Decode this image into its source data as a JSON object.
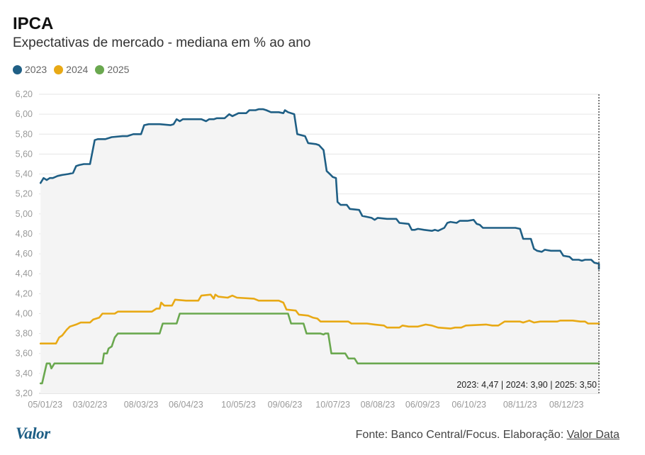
{
  "header": {
    "title": "IPCA",
    "subtitle": "Expectativas de mercado - mediana em % ao ano"
  },
  "legend": [
    {
      "label": "2023",
      "color": "#1f5f85"
    },
    {
      "label": "2024",
      "color": "#e8a915"
    },
    {
      "label": "2025",
      "color": "#6aa84f"
    }
  ],
  "summary": "2023: 4,47 | 2024: 3,90 | 2025: 3,50",
  "footer": {
    "logo": "Valor",
    "source_prefix": "Fonte: Banco Central/Focus. Elaboração: ",
    "source_link": "Valor Data"
  },
  "chart_data": {
    "type": "line",
    "xlim": [
      "2023-01-01",
      "2023-12-29"
    ],
    "ylim": [
      3.2,
      6.2
    ],
    "y_ticks": [
      3.2,
      3.4,
      3.6,
      3.8,
      4.0,
      4.2,
      4.4,
      4.6,
      4.8,
      5.0,
      5.2,
      5.4,
      5.6,
      5.8,
      6.0,
      6.2
    ],
    "y_tick_labels": [
      "3,20",
      "3,40",
      "3,60",
      "3,80",
      "4,00",
      "4,20",
      "4,40",
      "4,60",
      "4,80",
      "5,00",
      "5,20",
      "5,40",
      "5,60",
      "5,80",
      "6,00",
      "6,20"
    ],
    "x_tick_dates": [
      "2023-01-05",
      "2023-02-03",
      "2023-03-08",
      "2023-04-06",
      "2023-05-10",
      "2023-06-09",
      "2023-07-10",
      "2023-08-08",
      "2023-09-06",
      "2023-10-06",
      "2023-11-08",
      "2023-12-08"
    ],
    "x_tick_labels": [
      "05/01/23",
      "03/02/23",
      "08/03/23",
      "06/04/23",
      "10/05/23",
      "09/06/23",
      "10/07/23",
      "08/08/23",
      "06/09/23",
      "06/10/23",
      "08/11/23",
      "08/12/23"
    ],
    "area_under_series": "2023",
    "grid": true,
    "legend_position": "top-left",
    "series": [
      {
        "name": "2023",
        "color": "#1f5f85",
        "points": [
          [
            "2023-01-02",
            5.31
          ],
          [
            "2023-01-04",
            5.36
          ],
          [
            "2023-01-06",
            5.34
          ],
          [
            "2023-01-08",
            5.36
          ],
          [
            "2023-01-10",
            5.36
          ],
          [
            "2023-01-13",
            5.38
          ],
          [
            "2023-01-16",
            5.39
          ],
          [
            "2023-01-20",
            5.4
          ],
          [
            "2023-01-23",
            5.41
          ],
          [
            "2023-01-25",
            5.48
          ],
          [
            "2023-01-27",
            5.49
          ],
          [
            "2023-01-30",
            5.5
          ],
          [
            "2023-02-03",
            5.5
          ],
          [
            "2023-02-06",
            5.74
          ],
          [
            "2023-02-08",
            5.75
          ],
          [
            "2023-02-13",
            5.75
          ],
          [
            "2023-02-17",
            5.77
          ],
          [
            "2023-02-24",
            5.78
          ],
          [
            "2023-02-27",
            5.78
          ],
          [
            "2023-03-03",
            5.8
          ],
          [
            "2023-03-08",
            5.8
          ],
          [
            "2023-03-10",
            5.89
          ],
          [
            "2023-03-13",
            5.9
          ],
          [
            "2023-03-20",
            5.9
          ],
          [
            "2023-03-27",
            5.89
          ],
          [
            "2023-03-29",
            5.9
          ],
          [
            "2023-03-31",
            5.95
          ],
          [
            "2023-04-02",
            5.93
          ],
          [
            "2023-04-04",
            5.95
          ],
          [
            "2023-04-10",
            5.95
          ],
          [
            "2023-04-16",
            5.95
          ],
          [
            "2023-04-19",
            5.93
          ],
          [
            "2023-04-21",
            5.95
          ],
          [
            "2023-04-24",
            5.95
          ],
          [
            "2023-04-26",
            5.96
          ],
          [
            "2023-05-01",
            5.96
          ],
          [
            "2023-05-04",
            6.0
          ],
          [
            "2023-05-06",
            5.98
          ],
          [
            "2023-05-10",
            6.01
          ],
          [
            "2023-05-15",
            6.01
          ],
          [
            "2023-05-17",
            6.04
          ],
          [
            "2023-05-21",
            6.04
          ],
          [
            "2023-05-23",
            6.05
          ],
          [
            "2023-05-26",
            6.05
          ],
          [
            "2023-05-28",
            6.04
          ],
          [
            "2023-05-31",
            6.02
          ],
          [
            "2023-06-05",
            6.02
          ],
          [
            "2023-06-08",
            6.01
          ],
          [
            "2023-06-09",
            6.04
          ],
          [
            "2023-06-11",
            6.02
          ],
          [
            "2023-06-15",
            6.0
          ],
          [
            "2023-06-17",
            5.8
          ],
          [
            "2023-06-22",
            5.78
          ],
          [
            "2023-06-24",
            5.71
          ],
          [
            "2023-06-29",
            5.7
          ],
          [
            "2023-07-01",
            5.69
          ],
          [
            "2023-07-04",
            5.64
          ],
          [
            "2023-07-06",
            5.43
          ],
          [
            "2023-07-08",
            5.4
          ],
          [
            "2023-07-10",
            5.37
          ],
          [
            "2023-07-12",
            5.36
          ],
          [
            "2023-07-13",
            5.12
          ],
          [
            "2023-07-15",
            5.09
          ],
          [
            "2023-07-19",
            5.09
          ],
          [
            "2023-07-21",
            5.05
          ],
          [
            "2023-07-27",
            5.04
          ],
          [
            "2023-07-29",
            4.98
          ],
          [
            "2023-08-01",
            4.97
          ],
          [
            "2023-08-04",
            4.96
          ],
          [
            "2023-08-06",
            4.94
          ],
          [
            "2023-08-08",
            4.96
          ],
          [
            "2023-08-14",
            4.95
          ],
          [
            "2023-08-20",
            4.95
          ],
          [
            "2023-08-22",
            4.91
          ],
          [
            "2023-08-28",
            4.9
          ],
          [
            "2023-08-30",
            4.84
          ],
          [
            "2023-09-01",
            4.84
          ],
          [
            "2023-09-03",
            4.85
          ],
          [
            "2023-09-07",
            4.84
          ],
          [
            "2023-09-12",
            4.83
          ],
          [
            "2023-09-14",
            4.84
          ],
          [
            "2023-09-16",
            4.83
          ],
          [
            "2023-09-20",
            4.86
          ],
          [
            "2023-09-22",
            4.91
          ],
          [
            "2023-09-24",
            4.92
          ],
          [
            "2023-09-28",
            4.91
          ],
          [
            "2023-09-30",
            4.93
          ],
          [
            "2023-10-05",
            4.93
          ],
          [
            "2023-10-09",
            4.94
          ],
          [
            "2023-10-11",
            4.9
          ],
          [
            "2023-10-13",
            4.89
          ],
          [
            "2023-10-15",
            4.86
          ],
          [
            "2023-10-20",
            4.86
          ],
          [
            "2023-10-30",
            4.86
          ],
          [
            "2023-11-05",
            4.86
          ],
          [
            "2023-11-08",
            4.85
          ],
          [
            "2023-11-10",
            4.75
          ],
          [
            "2023-11-15",
            4.75
          ],
          [
            "2023-11-17",
            4.65
          ],
          [
            "2023-11-19",
            4.63
          ],
          [
            "2023-11-22",
            4.62
          ],
          [
            "2023-11-24",
            4.64
          ],
          [
            "2023-11-28",
            4.63
          ],
          [
            "2023-12-02",
            4.63
          ],
          [
            "2023-12-04",
            4.63
          ],
          [
            "2023-12-06",
            4.58
          ],
          [
            "2023-12-10",
            4.57
          ],
          [
            "2023-12-12",
            4.54
          ],
          [
            "2023-12-16",
            4.54
          ],
          [
            "2023-12-18",
            4.53
          ],
          [
            "2023-12-20",
            4.54
          ],
          [
            "2023-12-24",
            4.54
          ],
          [
            "2023-12-26",
            4.51
          ],
          [
            "2023-12-30",
            4.5
          ],
          [
            "2024-01-03",
            4.49
          ],
          [
            "2024-01-05",
            4.46
          ],
          [
            "2024-01-07",
            4.45
          ],
          [
            "2024-01-09",
            4.46
          ],
          [
            "2024-01-11",
            4.46
          ],
          [
            "2024-01-13",
            4.47
          ],
          [
            "2024-01-14",
            4.47
          ]
        ]
      },
      {
        "name": "2024",
        "color": "#e8a915",
        "points": [
          [
            "2023-01-02",
            3.7
          ],
          [
            "2023-01-12",
            3.7
          ],
          [
            "2023-01-14",
            3.76
          ],
          [
            "2023-01-16",
            3.78
          ],
          [
            "2023-01-19",
            3.84
          ],
          [
            "2023-01-21",
            3.87
          ],
          [
            "2023-01-25",
            3.89
          ],
          [
            "2023-01-28",
            3.91
          ],
          [
            "2023-02-03",
            3.91
          ],
          [
            "2023-02-05",
            3.94
          ],
          [
            "2023-02-09",
            3.96
          ],
          [
            "2023-02-11",
            4.0
          ],
          [
            "2023-02-19",
            4.0
          ],
          [
            "2023-02-21",
            4.02
          ],
          [
            "2023-03-08",
            4.02
          ],
          [
            "2023-03-15",
            4.02
          ],
          [
            "2023-03-18",
            4.05
          ],
          [
            "2023-03-20",
            4.05
          ],
          [
            "2023-03-21",
            4.11
          ],
          [
            "2023-03-23",
            4.08
          ],
          [
            "2023-03-28",
            4.08
          ],
          [
            "2023-03-30",
            4.14
          ],
          [
            "2023-04-06",
            4.13
          ],
          [
            "2023-04-14",
            4.13
          ],
          [
            "2023-04-16",
            4.18
          ],
          [
            "2023-04-22",
            4.19
          ],
          [
            "2023-04-24",
            4.15
          ],
          [
            "2023-04-25",
            4.19
          ],
          [
            "2023-04-27",
            4.17
          ],
          [
            "2023-05-03",
            4.16
          ],
          [
            "2023-05-06",
            4.18
          ],
          [
            "2023-05-09",
            4.16
          ],
          [
            "2023-05-20",
            4.15
          ],
          [
            "2023-05-23",
            4.13
          ],
          [
            "2023-06-05",
            4.13
          ],
          [
            "2023-06-08",
            4.11
          ],
          [
            "2023-06-10",
            4.04
          ],
          [
            "2023-06-16",
            4.03
          ],
          [
            "2023-06-18",
            3.99
          ],
          [
            "2023-06-24",
            3.98
          ],
          [
            "2023-06-27",
            3.96
          ],
          [
            "2023-06-30",
            3.95
          ],
          [
            "2023-07-02",
            3.92
          ],
          [
            "2023-07-20",
            3.92
          ],
          [
            "2023-07-22",
            3.9
          ],
          [
            "2023-08-01",
            3.9
          ],
          [
            "2023-08-06",
            3.89
          ],
          [
            "2023-08-12",
            3.88
          ],
          [
            "2023-08-14",
            3.86
          ],
          [
            "2023-08-22",
            3.86
          ],
          [
            "2023-08-24",
            3.88
          ],
          [
            "2023-08-28",
            3.87
          ],
          [
            "2023-09-03",
            3.87
          ],
          [
            "2023-09-08",
            3.89
          ],
          [
            "2023-09-12",
            3.88
          ],
          [
            "2023-09-16",
            3.86
          ],
          [
            "2023-09-24",
            3.85
          ],
          [
            "2023-09-27",
            3.86
          ],
          [
            "2023-10-01",
            3.86
          ],
          [
            "2023-10-04",
            3.88
          ],
          [
            "2023-10-17",
            3.89
          ],
          [
            "2023-10-21",
            3.88
          ],
          [
            "2023-10-25",
            3.88
          ],
          [
            "2023-10-29",
            3.92
          ],
          [
            "2023-11-08",
            3.92
          ],
          [
            "2023-11-10",
            3.91
          ],
          [
            "2023-11-14",
            3.93
          ],
          [
            "2023-11-17",
            3.91
          ],
          [
            "2023-11-21",
            3.92
          ],
          [
            "2023-12-02",
            3.92
          ],
          [
            "2023-12-04",
            3.93
          ],
          [
            "2023-12-12",
            3.93
          ],
          [
            "2023-12-17",
            3.92
          ],
          [
            "2023-12-20",
            3.92
          ],
          [
            "2023-12-22",
            3.9
          ],
          [
            "2024-01-14",
            3.9
          ]
        ]
      },
      {
        "name": "2025",
        "color": "#6aa84f",
        "points": [
          [
            "2023-01-02",
            3.3
          ],
          [
            "2023-01-03",
            3.3
          ],
          [
            "2023-01-06",
            3.5
          ],
          [
            "2023-01-08",
            3.5
          ],
          [
            "2023-01-09",
            3.45
          ],
          [
            "2023-01-11",
            3.5
          ],
          [
            "2023-02-08",
            3.5
          ],
          [
            "2023-02-11",
            3.5
          ],
          [
            "2023-02-12",
            3.6
          ],
          [
            "2023-02-14",
            3.6
          ],
          [
            "2023-02-15",
            3.65
          ],
          [
            "2023-02-17",
            3.67
          ],
          [
            "2023-02-19",
            3.76
          ],
          [
            "2023-02-21",
            3.8
          ],
          [
            "2023-03-20",
            3.8
          ],
          [
            "2023-03-22",
            3.9
          ],
          [
            "2023-03-31",
            3.9
          ],
          [
            "2023-04-02",
            4.0
          ],
          [
            "2023-06-11",
            4.0
          ],
          [
            "2023-06-13",
            3.9
          ],
          [
            "2023-06-21",
            3.9
          ],
          [
            "2023-06-23",
            3.8
          ],
          [
            "2023-07-02",
            3.8
          ],
          [
            "2023-07-04",
            3.79
          ],
          [
            "2023-07-05",
            3.8
          ],
          [
            "2023-07-07",
            3.8
          ],
          [
            "2023-07-09",
            3.6
          ],
          [
            "2023-07-18",
            3.6
          ],
          [
            "2023-07-20",
            3.55
          ],
          [
            "2023-07-24",
            3.55
          ],
          [
            "2023-07-26",
            3.5
          ],
          [
            "2024-01-14",
            3.5
          ]
        ]
      }
    ]
  }
}
